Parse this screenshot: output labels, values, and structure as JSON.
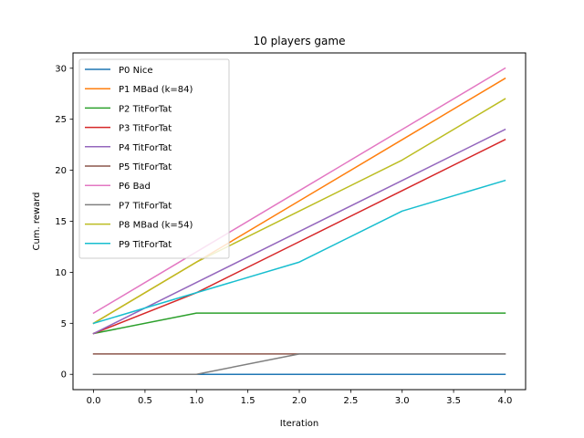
{
  "chart_data": {
    "type": "line",
    "title": "10 players game",
    "xlabel": "Iteration",
    "ylabel": "Cum. reward",
    "xlim": [
      -0.2,
      4.2
    ],
    "ylim": [
      -1.5,
      31.5
    ],
    "xticks": [
      "0.0",
      "0.5",
      "1.0",
      "1.5",
      "2.0",
      "2.5",
      "3.0",
      "3.5",
      "4.0"
    ],
    "yticks": [
      "0",
      "5",
      "10",
      "15",
      "20",
      "25",
      "30"
    ],
    "grid": false,
    "legend_position": "top-left",
    "x": [
      0,
      1,
      2,
      3,
      4
    ],
    "series": [
      {
        "name": "P0 Nice",
        "color": "#1f77b4",
        "values": [
          0,
          0,
          0,
          0,
          0
        ]
      },
      {
        "name": "P1 MBad (k=84)",
        "color": "#ff7f0e",
        "values": [
          5,
          11,
          17,
          23,
          29
        ]
      },
      {
        "name": "P2 TitForTat",
        "color": "#2ca02c",
        "values": [
          4,
          6,
          6,
          6,
          6
        ]
      },
      {
        "name": "P3 TitForTat",
        "color": "#d62728",
        "values": [
          4,
          8,
          13,
          18,
          23
        ]
      },
      {
        "name": "P4 TitForTat",
        "color": "#9467bd",
        "values": [
          4,
          9,
          14,
          19,
          24
        ]
      },
      {
        "name": "P5 TitForTat",
        "color": "#8c564b",
        "values": [
          2,
          2,
          2,
          2,
          2
        ]
      },
      {
        "name": "P6 Bad",
        "color": "#e377c2",
        "values": [
          6,
          12,
          18,
          24,
          30
        ]
      },
      {
        "name": "P7 TitForTat",
        "color": "#7f7f7f",
        "values": [
          0,
          0,
          2,
          2,
          2
        ]
      },
      {
        "name": "P8 MBad (k=54)",
        "color": "#bcbd22",
        "values": [
          5,
          11,
          16,
          21,
          27
        ]
      },
      {
        "name": "P9 TitForTat",
        "color": "#17becf",
        "values": [
          5,
          8,
          11,
          16,
          19
        ]
      }
    ]
  }
}
